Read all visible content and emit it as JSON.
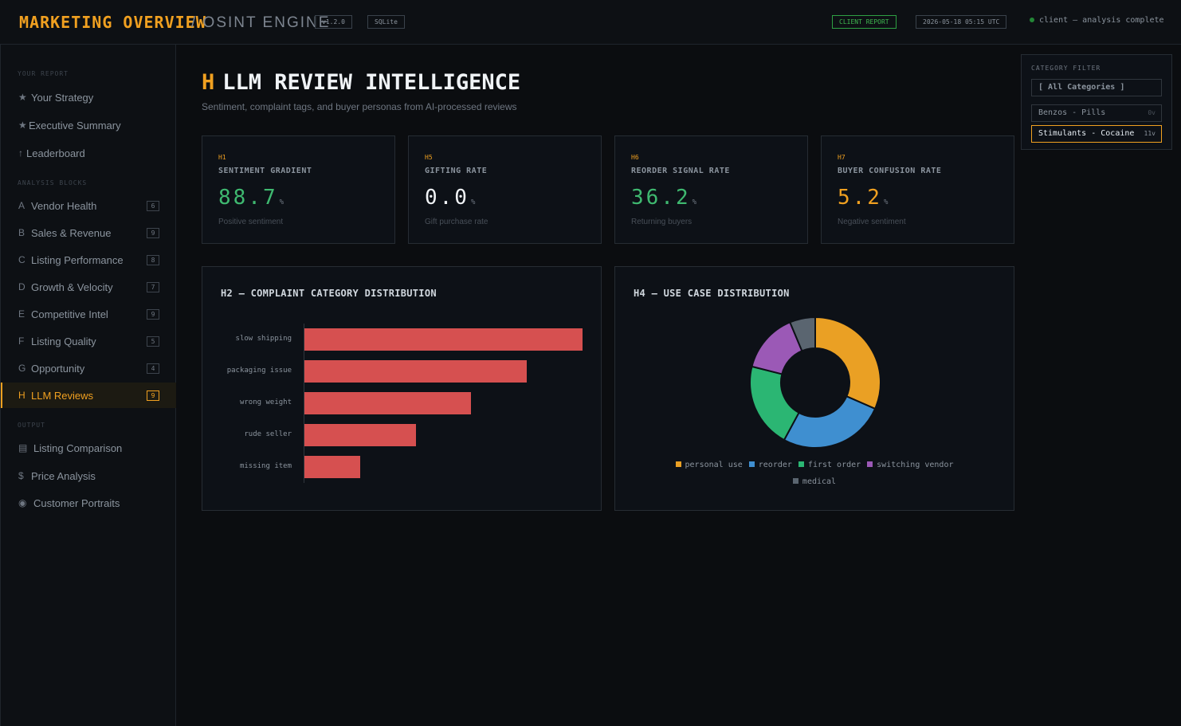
{
  "header": {
    "brand": "MARKETING OVERVIEW",
    "subtitle": "/ OSINT ENGINE",
    "version": "v1.2.0",
    "db": "SQLite",
    "report_badge": "CLIENT REPORT",
    "timestamp": "2026-05-18 05:15 UTC",
    "status": "client — analysis complete"
  },
  "sidebar": {
    "sections": {
      "report": "YOUR REPORT",
      "analysis": "ANALYSIS BLOCKS",
      "output": "OUTPUT"
    },
    "report_items": [
      {
        "glyph": "★",
        "label": "Your Strategy"
      },
      {
        "glyph": "★",
        "label": "Executive Summary"
      },
      {
        "glyph": "↑",
        "label": "Leaderboard"
      }
    ],
    "blocks": [
      {
        "glyph": "A",
        "label": "Vendor Health",
        "count": "6"
      },
      {
        "glyph": "B",
        "label": "Sales & Revenue",
        "count": "9"
      },
      {
        "glyph": "C",
        "label": "Listing Performance",
        "count": "8"
      },
      {
        "glyph": "D",
        "label": "Growth & Velocity",
        "count": "7"
      },
      {
        "glyph": "E",
        "label": "Competitive Intel",
        "count": "9"
      },
      {
        "glyph": "F",
        "label": "Listing Quality",
        "count": "5"
      },
      {
        "glyph": "G",
        "label": "Opportunity",
        "count": "4"
      },
      {
        "glyph": "H",
        "label": "LLM Reviews",
        "count": "9"
      }
    ],
    "output_items": [
      {
        "glyph": "▤",
        "label": "Listing Comparison"
      },
      {
        "glyph": "$",
        "label": "Price Analysis"
      },
      {
        "glyph": "◉",
        "label": "Customer Portraits"
      }
    ]
  },
  "main": {
    "letter": "H",
    "title": "LLM REVIEW INTELLIGENCE",
    "subtitle": "Sentiment, complaint tags, and buyer personas from AI-processed reviews",
    "kpis": [
      {
        "code": "H1",
        "label": "SENTIMENT GRADIENT",
        "value": "88.7",
        "unit": "%",
        "foot": "Positive sentiment",
        "color": "#3fb970"
      },
      {
        "code": "H5",
        "label": "GIFTING RATE",
        "value": "0.0",
        "unit": "%",
        "foot": "Gift purchase rate",
        "color": "#f0f3f6"
      },
      {
        "code": "H6",
        "label": "REORDER SIGNAL RATE",
        "value": "36.2",
        "unit": "%",
        "foot": "Returning buyers",
        "color": "#3fb970"
      },
      {
        "code": "H7",
        "label": "BUYER CONFUSION RATE",
        "value": "5.2",
        "unit": "%",
        "foot": "Negative sentiment",
        "color": "#f0a020"
      }
    ]
  },
  "filter": {
    "label": "CATEGORY FILTER",
    "all": "[ All Categories ]",
    "options": [
      {
        "label": "Benzos - Pills",
        "count": "0v"
      },
      {
        "label": "Stimulants - Cocaine",
        "count": "11v"
      }
    ]
  },
  "chart_data": [
    {
      "type": "bar",
      "orientation": "horizontal",
      "title": "H2 — COMPLAINT CATEGORY DISTRIBUTION",
      "categories": [
        "slow shipping",
        "packaging issue",
        "wrong weight",
        "rude seller",
        "missing item"
      ],
      "values": [
        5,
        4,
        3,
        2,
        1
      ],
      "color": "#d65050"
    },
    {
      "type": "pie",
      "donut": true,
      "title": "H4 — USE CASE DISTRIBUTION",
      "categories": [
        "personal use",
        "reorder",
        "first order",
        "switching vendor",
        "medical"
      ],
      "values": [
        30,
        25,
        20,
        14,
        6
      ],
      "colors": [
        "#eaa024",
        "#3f8fd0",
        "#2bb673",
        "#9b59b6",
        "#5a6570"
      ]
    }
  ]
}
